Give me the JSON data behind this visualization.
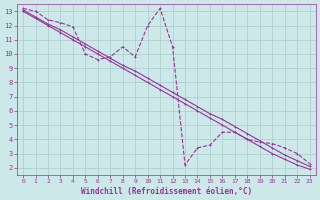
{
  "xlabel": "Windchill (Refroidissement éolien,°C)",
  "bg_color": "#cce8e8",
  "grid_color": "#aacccc",
  "line_color": "#993399",
  "xlim": [
    -0.5,
    23.5
  ],
  "ylim": [
    1.5,
    13.5
  ],
  "xticks": [
    0,
    1,
    2,
    3,
    4,
    5,
    6,
    7,
    8,
    9,
    10,
    11,
    12,
    13,
    14,
    15,
    16,
    17,
    18,
    19,
    20,
    21,
    22,
    23
  ],
  "yticks": [
    2,
    3,
    4,
    5,
    6,
    7,
    8,
    9,
    10,
    11,
    12,
    13
  ],
  "diag_x": [
    0,
    1,
    2,
    3,
    4,
    5,
    6,
    7,
    8,
    9,
    10,
    11,
    12,
    13,
    14,
    15,
    16,
    17,
    18,
    19,
    20,
    21,
    22,
    23
  ],
  "diag_y": [
    13.1,
    12.6,
    12.1,
    11.7,
    11.2,
    10.7,
    10.2,
    9.7,
    9.2,
    8.8,
    8.3,
    7.8,
    7.3,
    6.8,
    6.3,
    5.8,
    5.4,
    4.9,
    4.4,
    3.9,
    3.4,
    2.9,
    2.5,
    2.1
  ],
  "data_x": [
    0,
    1,
    2,
    3,
    4,
    5,
    6,
    7,
    8,
    9,
    10,
    11,
    12,
    13,
    14,
    15,
    16,
    17,
    18,
    19,
    20,
    21,
    22,
    23
  ],
  "data_y": [
    13.2,
    13.0,
    12.4,
    12.2,
    11.9,
    10.0,
    9.6,
    9.8,
    10.5,
    9.8,
    12.0,
    13.2,
    10.5,
    2.2,
    3.4,
    3.6,
    4.5,
    4.5,
    4.0,
    3.8,
    3.7,
    3.4,
    3.0,
    2.3
  ],
  "diag2_x": [
    0,
    1,
    2,
    3,
    4,
    5,
    6,
    7,
    8,
    9,
    10,
    11,
    12,
    13,
    14,
    15,
    16,
    17,
    18,
    19,
    20,
    21,
    22,
    23
  ],
  "diag2_y": [
    13.0,
    12.5,
    12.0,
    11.5,
    11.0,
    10.5,
    10.0,
    9.5,
    9.0,
    8.5,
    8.0,
    7.5,
    7.0,
    6.5,
    6.0,
    5.5,
    5.0,
    4.5,
    4.0,
    3.5,
    3.0,
    2.6,
    2.2,
    1.9
  ]
}
